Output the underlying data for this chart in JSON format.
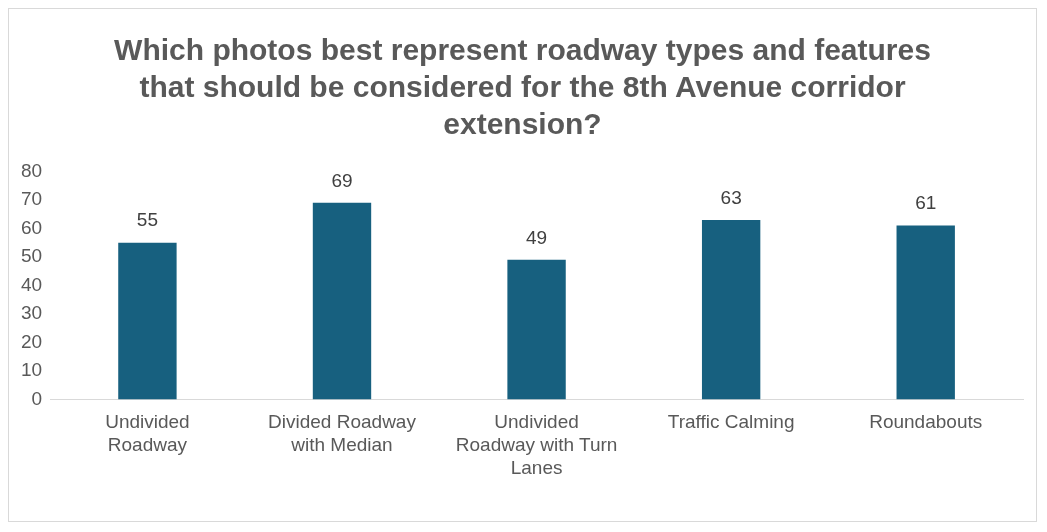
{
  "chart_data": {
    "type": "bar",
    "title": "Which photos best represent roadway types and features that should be considered for the 8th Avenue corridor extension?",
    "categories": [
      "Undivided Roadway",
      "Divided Roadway with Median",
      "Undivided Roadway with Turn Lanes",
      "Traffic Calming",
      "Roundabouts"
    ],
    "values": [
      55,
      69,
      49,
      63,
      61
    ],
    "color": "#17607f",
    "ylim": [
      0,
      80
    ],
    "yticks": [
      0,
      10,
      20,
      30,
      40,
      50,
      60,
      70,
      80
    ],
    "grid": false,
    "legend": false,
    "data_labels": true
  }
}
